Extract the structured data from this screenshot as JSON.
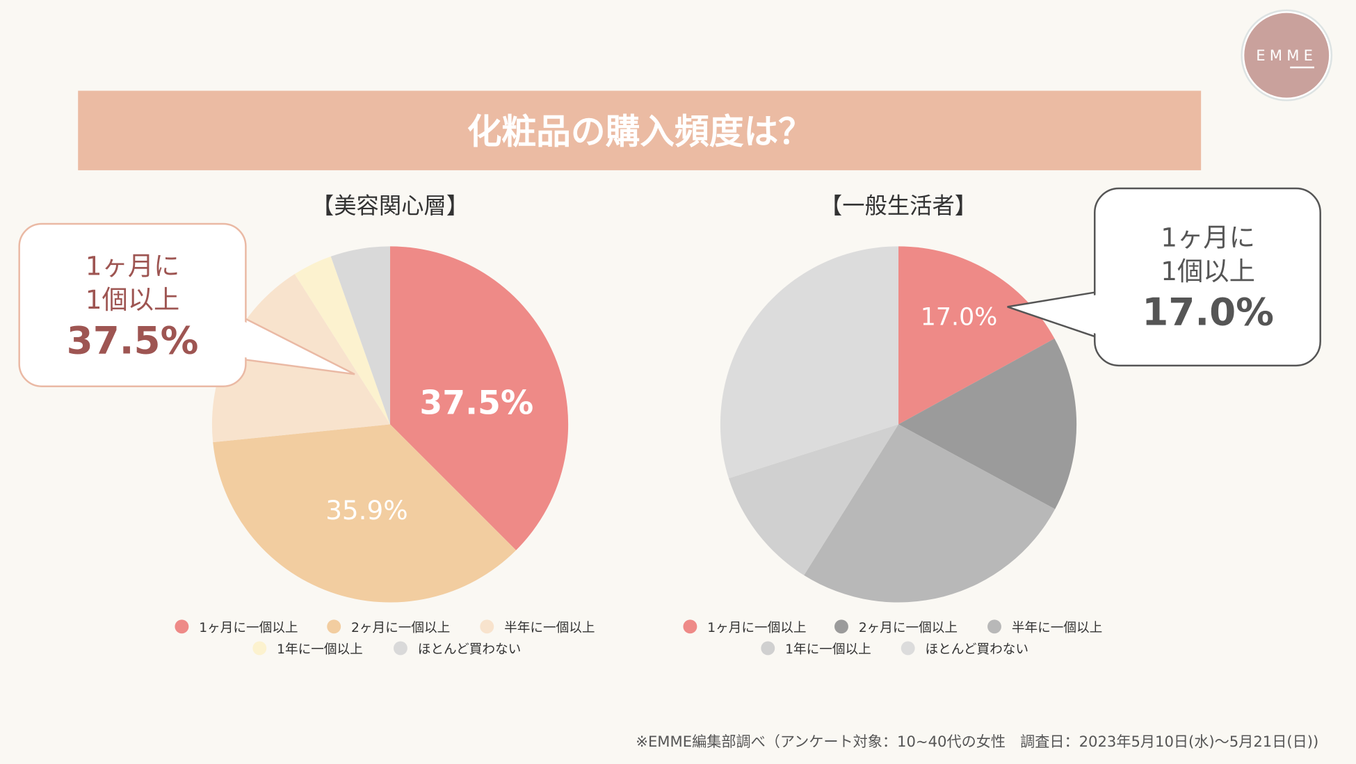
{
  "logo": {
    "text": "EMME",
    "color": "#c9a19c"
  },
  "title": "化粧品の購入頻度は？",
  "title_bg": "#ebbba3",
  "legend_labels": [
    "1ヶ月に一個以上",
    "2ヶ月に一個以上",
    "半年に一個以上",
    "1年に一個以上",
    "ほとんど買わない"
  ],
  "chart_data": [
    {
      "type": "pie",
      "title": "【美容関心層】",
      "categories": [
        "1ヶ月に一個以上",
        "2ヶ月に一個以上",
        "半年に一個以上",
        "1年に一個以上",
        "ほとんど買わない"
      ],
      "values": [
        37.5,
        35.9,
        17.6,
        3.6,
        5.4
      ],
      "colors": [
        "#ee8a87",
        "#f2cda0",
        "#f8e3cd",
        "#fcf2cf",
        "#d9d9d9"
      ],
      "data_labels": [
        "37.5%",
        "35.9%",
        "",
        "",
        ""
      ],
      "legend": "bottom",
      "callout": {
        "line1": "1ヶ月に",
        "line2": "1個以上",
        "value": "37.5%",
        "color": "#9e5552",
        "border": "#eab9a4"
      }
    },
    {
      "type": "pie",
      "title": "【一般生活者】",
      "categories": [
        "1ヶ月に一個以上",
        "2ヶ月に一個以上",
        "半年に一個以上",
        "1年に一個以上",
        "ほとんど買わない"
      ],
      "values": [
        17.0,
        15.9,
        26.0,
        11.2,
        29.9
      ],
      "colors": [
        "#ee8a87",
        "#9b9b9b",
        "#b8b8b8",
        "#d0d0d0",
        "#dcdcdc"
      ],
      "data_labels": [
        "17.0%",
        "",
        "",
        "",
        ""
      ],
      "legend": "bottom",
      "callout": {
        "line1": "1ヶ月に",
        "line2": "1個以上",
        "value": "17.0%",
        "color": "#555555",
        "border": "#555555"
      }
    }
  ],
  "footnote": "※EMME編集部調べ（アンケート対象：10~40代の女性　調査日：2023年5月10日(水)〜5月21日(日))"
}
